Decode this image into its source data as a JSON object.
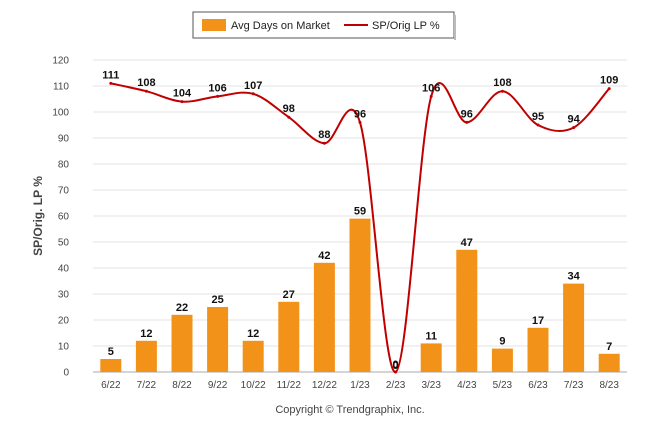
{
  "colors": {
    "bar": "#F29219",
    "line": "#C00000",
    "grid": "#E3E3E3",
    "axis": "#AAAAAA"
  },
  "legend": {
    "bar_label": "Avg Days on Market",
    "line_label": "SP/Orig LP %"
  },
  "copyright": "Copyright © Trendgraphix, Inc.",
  "chart_data": {
    "type": "bar",
    "title": "",
    "xlabel": "",
    "ylabel": "SP/Orig. LP %",
    "ylim": [
      0,
      120
    ],
    "yticks": [
      0,
      10,
      20,
      30,
      40,
      50,
      60,
      70,
      80,
      90,
      100,
      110,
      120
    ],
    "grid": true,
    "legend_position": "top-center",
    "categories": [
      "6/22",
      "7/22",
      "8/22",
      "9/22",
      "10/22",
      "11/22",
      "12/22",
      "1/23",
      "2/23",
      "3/23",
      "4/23",
      "5/23",
      "6/23",
      "7/23",
      "8/23"
    ],
    "series": [
      {
        "name": "Avg Days on Market",
        "type": "bar",
        "values": [
          5,
          12,
          22,
          25,
          12,
          27,
          42,
          59,
          0,
          11,
          47,
          9,
          17,
          34,
          7
        ]
      },
      {
        "name": "SP/Orig LP %",
        "type": "line",
        "values": [
          111,
          108,
          104,
          106,
          107,
          98,
          88,
          96,
          0,
          106,
          96,
          108,
          95,
          94,
          109
        ]
      }
    ]
  }
}
